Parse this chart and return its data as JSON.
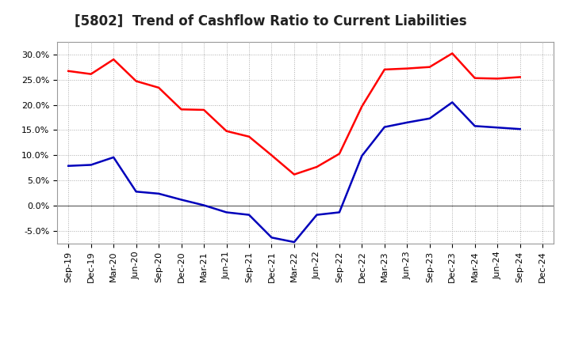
{
  "title": "[5802]  Trend of Cashflow Ratio to Current Liabilities",
  "x_labels": [
    "Sep-19",
    "Dec-19",
    "Mar-20",
    "Jun-20",
    "Sep-20",
    "Dec-20",
    "Mar-21",
    "Jun-21",
    "Sep-21",
    "Dec-21",
    "Mar-22",
    "Jun-22",
    "Sep-22",
    "Dec-22",
    "Mar-23",
    "Jun-23",
    "Sep-23",
    "Dec-23",
    "Mar-24",
    "Jun-24",
    "Sep-24",
    "Dec-24"
  ],
  "operating_cf": [
    0.267,
    0.261,
    0.29,
    0.247,
    0.234,
    0.191,
    0.19,
    0.148,
    0.137,
    0.1,
    0.062,
    0.077,
    0.103,
    0.197,
    0.27,
    0.272,
    0.275,
    0.302,
    0.253,
    0.252,
    0.255,
    null
  ],
  "free_cf": [
    0.079,
    0.081,
    0.096,
    0.028,
    0.024,
    0.012,
    0.001,
    -0.013,
    -0.018,
    -0.063,
    -0.072,
    -0.018,
    -0.013,
    0.099,
    0.156,
    0.165,
    0.173,
    0.205,
    0.158,
    0.155,
    0.152,
    null
  ],
  "operating_color": "#FF0000",
  "free_color": "#0000BB",
  "ylim": [
    -0.075,
    0.325
  ],
  "yticks": [
    -0.05,
    0.0,
    0.05,
    0.1,
    0.15,
    0.2,
    0.25,
    0.3
  ],
  "background_color": "#FFFFFF",
  "grid_color": "#AAAAAA",
  "zero_line_color": "#666666",
  "title_fontsize": 12,
  "legend_fontsize": 9,
  "tick_fontsize": 8
}
